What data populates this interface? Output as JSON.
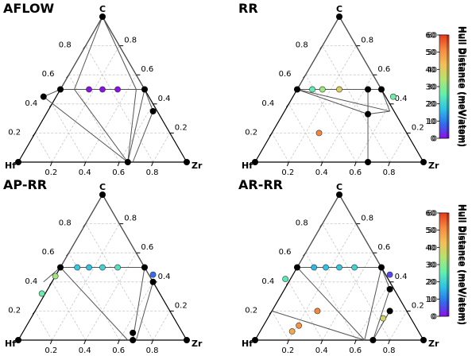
{
  "colormap": [
    "#8a0fe8",
    "#2f6ff0",
    "#2ec3e6",
    "#62f0ac",
    "#b6e36e",
    "#f3c057",
    "#f78a3f",
    "#e83a1e"
  ],
  "colorbar": {
    "label": "Hull Distance (meV/atom)",
    "ticks": [
      "0",
      "10",
      "20",
      "30",
      "40",
      "50",
      "60"
    ],
    "range": [
      0,
      60
    ]
  },
  "axis_ticks": {
    "left": [
      "0.2",
      "0.4",
      "0.6",
      "0.8"
    ],
    "right": [
      "0.8",
      "0.6",
      "0.4",
      "0.2"
    ],
    "bottom": [
      "0.2",
      "0.4",
      "0.6",
      "0.8"
    ]
  },
  "chart_data": [
    {
      "type": "ternary",
      "title": "AFLOW",
      "vertices": {
        "top": "C",
        "left": "Hf",
        "right": "Zr"
      },
      "hull_points": [
        [
          0.5,
          0.5
        ],
        [
          0.333,
          0.5
        ],
        [
          0.25,
          0.5
        ],
        [
          0.15,
          0.45
        ],
        [
          0.7,
          0.5
        ],
        [
          0.75,
          0.5
        ],
        [
          0.8,
          0.35
        ],
        [
          0.68,
          0.0
        ],
        [
          0.65,
          0.0
        ]
      ],
      "hull_edges": [
        [
          [
            0.333,
            0.5
          ],
          [
            0.5,
            0.5
          ]
        ],
        [
          [
            0.333,
            0.5
          ],
          [
            0.25,
            0.5
          ]
        ],
        [
          [
            0.25,
            0.5
          ],
          [
            0.15,
            0.45
          ]
        ],
        [
          [
            0.25,
            0.5
          ],
          [
            0.333,
            0.5
          ]
        ],
        [
          [
            0.15,
            0.45
          ],
          [
            0.65,
            0.0
          ]
        ],
        [
          [
            0.333,
            0.5
          ],
          [
            0.65,
            0.0
          ]
        ],
        [
          [
            0.7,
            0.5
          ],
          [
            0.65,
            0.0
          ]
        ],
        [
          [
            0.75,
            0.5
          ],
          [
            0.65,
            0.0
          ]
        ],
        [
          [
            0.8,
            0.35
          ],
          [
            0.68,
            0.0
          ]
        ],
        [
          [
            0.333,
            0.5
          ],
          [
            0.7,
            0.5
          ]
        ],
        [
          [
            0.7,
            0.5
          ],
          [
            0.75,
            0.5
          ]
        ],
        [
          [
            0.75,
            0.5
          ],
          [
            0.8,
            0.35
          ]
        ],
        [
          [
            0.5,
            0.5
          ],
          [
            0.333,
            0.5
          ]
        ],
        [
          [
            0.5,
            0.5
          ],
          [
            0.7,
            0.5
          ]
        ],
        [
          [
            0.5,
            1.0
          ],
          [
            0.25,
            0.5
          ]
        ],
        [
          [
            0.5,
            1.0
          ],
          [
            0.333,
            0.5
          ]
        ],
        [
          [
            0.5,
            1.0
          ],
          [
            0.7,
            0.5
          ]
        ],
        [
          [
            0.5,
            1.0
          ],
          [
            0.75,
            0.5
          ]
        ]
      ],
      "stable_phases": [
        [
          0.5,
          1.0
        ],
        [
          0.0,
          0.0
        ],
        [
          1.0,
          0.0
        ],
        [
          0.25,
          0.5
        ],
        [
          0.15,
          0.45
        ],
        [
          0.75,
          0.5
        ],
        [
          0.8,
          0.35
        ],
        [
          0.65,
          0.0
        ]
      ],
      "candidates": [
        {
          "x": 0.42,
          "y": 0.5,
          "hull_distance": 0
        },
        {
          "x": 0.5,
          "y": 0.5,
          "hull_distance": 0
        },
        {
          "x": 0.59,
          "y": 0.5,
          "hull_distance": 0
        }
      ]
    },
    {
      "type": "ternary",
      "title": "RR",
      "vertices": {
        "top": "C",
        "left": "Hf",
        "right": "Zr"
      },
      "hull_points": [],
      "hull_edges": [
        [
          [
            0.25,
            0.5
          ],
          [
            0.75,
            0.5
          ]
        ],
        [
          [
            0.5,
            1.0
          ],
          [
            0.25,
            0.5
          ]
        ],
        [
          [
            0.5,
            1.0
          ],
          [
            0.75,
            0.5
          ]
        ],
        [
          [
            0.25,
            0.5
          ],
          [
            0.8,
            0.35
          ]
        ],
        [
          [
            0.75,
            0.5
          ],
          [
            0.8,
            0.35
          ]
        ],
        [
          [
            0.25,
            0.5
          ],
          [
            0.67,
            0.33
          ]
        ],
        [
          [
            0.67,
            0.33
          ],
          [
            0.67,
            0.0
          ]
        ],
        [
          [
            0.67,
            0.33
          ],
          [
            0.8,
            0.35
          ]
        ],
        [
          [
            0.67,
            0.5
          ],
          [
            0.67,
            0.33
          ]
        ]
      ],
      "stable_phases": [
        [
          0.5,
          1.0
        ],
        [
          0.0,
          0.0
        ],
        [
          1.0,
          0.0
        ],
        [
          0.25,
          0.5
        ],
        [
          0.67,
          0.5
        ],
        [
          0.75,
          0.5
        ],
        [
          0.67,
          0.33
        ],
        [
          0.67,
          0.0
        ]
      ],
      "candidates": [
        {
          "x": 0.34,
          "y": 0.5,
          "hull_distance": 25
        },
        {
          "x": 0.4,
          "y": 0.5,
          "hull_distance": 32
        },
        {
          "x": 0.5,
          "y": 0.5,
          "hull_distance": 40
        },
        {
          "x": 0.82,
          "y": 0.45,
          "hull_distance": 27
        },
        {
          "x": 0.38,
          "y": 0.2,
          "hull_distance": 52
        }
      ]
    },
    {
      "type": "ternary",
      "title": "AP-RR",
      "vertices": {
        "top": "C",
        "left": "Hf",
        "right": "Zr"
      },
      "hull_points": [],
      "hull_edges": [
        [
          [
            0.25,
            0.5
          ],
          [
            0.75,
            0.5
          ]
        ],
        [
          [
            0.5,
            1.0
          ],
          [
            0.25,
            0.5
          ]
        ],
        [
          [
            0.5,
            1.0
          ],
          [
            0.75,
            0.5
          ]
        ],
        [
          [
            0.25,
            0.5
          ],
          [
            0.65,
            0.0
          ]
        ],
        [
          [
            0.25,
            0.5
          ],
          [
            0.15,
            0.4
          ]
        ],
        [
          [
            0.75,
            0.5
          ],
          [
            0.68,
            0.0
          ]
        ],
        [
          [
            0.8,
            0.4
          ],
          [
            0.7,
            0.0
          ]
        ],
        [
          [
            0.8,
            0.4
          ],
          [
            0.75,
            0.5
          ]
        ]
      ],
      "stable_phases": [
        [
          0.5,
          1.0
        ],
        [
          0.0,
          0.0
        ],
        [
          1.0,
          0.0
        ],
        [
          0.25,
          0.5
        ],
        [
          0.75,
          0.5
        ],
        [
          0.8,
          0.4
        ],
        [
          0.68,
          0.05
        ],
        [
          0.68,
          0.0
        ]
      ],
      "candidates": [
        {
          "x": 0.35,
          "y": 0.5,
          "hull_distance": 18
        },
        {
          "x": 0.42,
          "y": 0.5,
          "hull_distance": 17
        },
        {
          "x": 0.5,
          "y": 0.5,
          "hull_distance": 20
        },
        {
          "x": 0.59,
          "y": 0.5,
          "hull_distance": 23
        },
        {
          "x": 0.8,
          "y": 0.45,
          "hull_distance": 8
        },
        {
          "x": 0.22,
          "y": 0.44,
          "hull_distance": 32
        },
        {
          "x": 0.14,
          "y": 0.32,
          "hull_distance": 26
        }
      ]
    },
    {
      "type": "ternary",
      "title": "AR-RR",
      "vertices": {
        "top": "C",
        "left": "Hf",
        "right": "Zr"
      },
      "hull_points": [],
      "hull_edges": [
        [
          [
            0.25,
            0.5
          ],
          [
            0.75,
            0.5
          ]
        ],
        [
          [
            0.5,
            1.0
          ],
          [
            0.25,
            0.5
          ]
        ],
        [
          [
            0.5,
            1.0
          ],
          [
            0.75,
            0.5
          ]
        ],
        [
          [
            0.25,
            0.5
          ],
          [
            0.65,
            0.0
          ]
        ],
        [
          [
            0.75,
            0.5
          ],
          [
            0.65,
            0.0
          ]
        ],
        [
          [
            0.1,
            0.2
          ],
          [
            0.65,
            0.0
          ]
        ],
        [
          [
            0.8,
            0.35
          ],
          [
            0.7,
            0.0
          ]
        ],
        [
          [
            0.8,
            0.35
          ],
          [
            0.75,
            0.5
          ]
        ],
        [
          [
            0.8,
            0.2
          ],
          [
            0.7,
            0.0
          ]
        ],
        [
          [
            0.8,
            0.2
          ],
          [
            0.75,
            0.1
          ]
        ]
      ],
      "stable_phases": [
        [
          0.5,
          1.0
        ],
        [
          0.0,
          0.0
        ],
        [
          1.0,
          0.0
        ],
        [
          0.25,
          0.5
        ],
        [
          0.75,
          0.5
        ],
        [
          0.8,
          0.35
        ],
        [
          0.8,
          0.2
        ],
        [
          0.7,
          0.0
        ]
      ],
      "candidates": [
        {
          "x": 0.35,
          "y": 0.5,
          "hull_distance": 16
        },
        {
          "x": 0.42,
          "y": 0.5,
          "hull_distance": 17
        },
        {
          "x": 0.5,
          "y": 0.5,
          "hull_distance": 18
        },
        {
          "x": 0.59,
          "y": 0.5,
          "hull_distance": 20
        },
        {
          "x": 0.8,
          "y": 0.45,
          "hull_distance": 5
        },
        {
          "x": 0.18,
          "y": 0.42,
          "hull_distance": 24
        },
        {
          "x": 0.37,
          "y": 0.2,
          "hull_distance": 52
        },
        {
          "x": 0.22,
          "y": 0.06,
          "hull_distance": 47
        },
        {
          "x": 0.26,
          "y": 0.1,
          "hull_distance": 50
        },
        {
          "x": 0.76,
          "y": 0.15,
          "hull_distance": 38
        }
      ]
    }
  ]
}
